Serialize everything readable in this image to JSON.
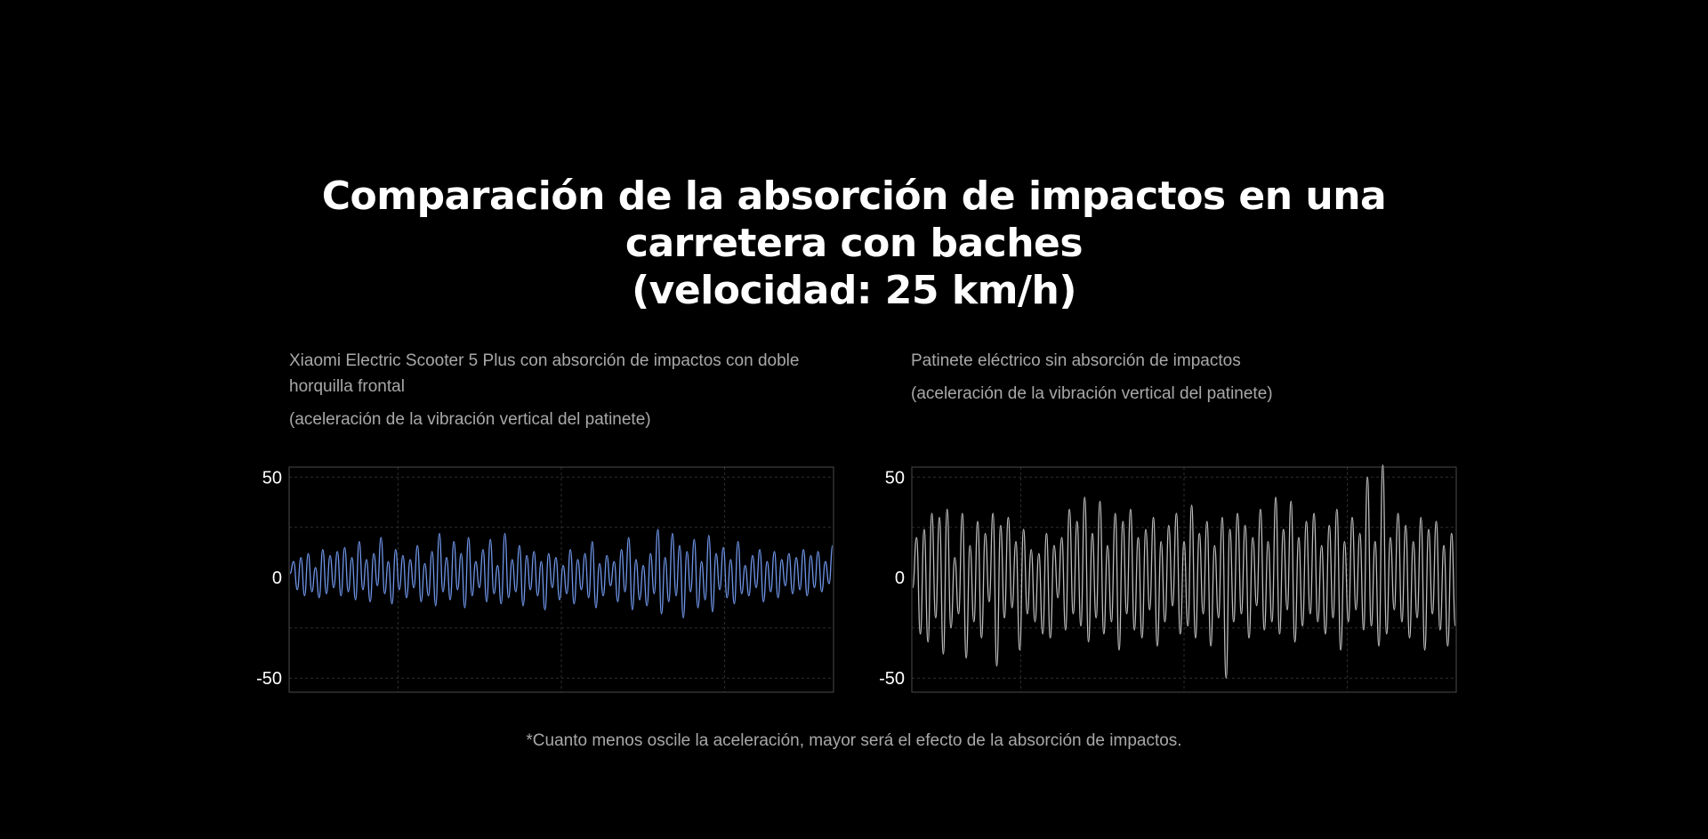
{
  "title": {
    "line1": "Comparación de la absorción de impactos en una",
    "line2": "carretera con baches",
    "line3": "(velocidad: 25 km/h)"
  },
  "footnote": "*Cuanto menos oscile la aceleración, mayor será el efecto de la absorción de impactos.",
  "colors": {
    "background": "#000000",
    "series_left": "#6f95e8",
    "series_right": "#bdbdbd",
    "frame": "#4a4a4a",
    "grid": "#2e2e2e"
  },
  "chart_data": [
    {
      "type": "line",
      "title": "Xiaomi Electric Scooter 5 Plus con absorción de impactos con doble horquilla frontal",
      "subtitle": "(aceleración de la vibración vertical del patinete)",
      "ylim": [
        -57,
        55
      ],
      "yticks": [
        50,
        0,
        -50
      ],
      "ytick_labels": [
        "50",
        "0",
        "-50"
      ],
      "grid": true,
      "series": [
        {
          "color": "#6f95e8",
          "y": [
            2,
            8,
            -6,
            10,
            -9,
            12,
            -7,
            5,
            -10,
            14,
            -8,
            11,
            -5,
            13,
            -9,
            15,
            -7,
            10,
            -11,
            18,
            -6,
            9,
            -12,
            12,
            -4,
            20,
            -8,
            8,
            -13,
            14,
            -6,
            11,
            -10,
            9,
            -5,
            16,
            -12,
            7,
            -9,
            13,
            -14,
            22,
            -7,
            10,
            -11,
            18,
            -6,
            12,
            -15,
            20,
            -9,
            8,
            -5,
            14,
            -12,
            19,
            -8,
            6,
            -13,
            22,
            -10,
            9,
            -7,
            16,
            -14,
            11,
            -6,
            13,
            -9,
            8,
            -16,
            12,
            -5,
            10,
            -11,
            6,
            -8,
            14,
            -13,
            9,
            -6,
            12,
            -10,
            18,
            -15,
            7,
            -9,
            11,
            -4,
            8,
            -12,
            14,
            -7,
            20,
            -16,
            9,
            -11,
            6,
            -14,
            12,
            -8,
            24,
            -18,
            10,
            -12,
            22,
            -9,
            16,
            -20,
            13,
            -7,
            19,
            -15,
            8,
            -11,
            21,
            -17,
            12,
            -6,
            15,
            -10,
            9,
            -13,
            18,
            -8,
            6,
            -9,
            11,
            -5,
            14,
            -12,
            8,
            -7,
            13,
            -10,
            9,
            -4,
            12,
            -8,
            10,
            -6,
            14,
            -9,
            11,
            -5,
            13,
            -7,
            8,
            -3,
            16
          ]
        }
      ]
    },
    {
      "type": "line",
      "title": "Patinete eléctrico sin absorción de impactos",
      "subtitle": "(aceleración de la vibración vertical del patinete)",
      "ylim": [
        -57,
        55
      ],
      "yticks": [
        50,
        0,
        -50
      ],
      "ytick_labels": [
        "50",
        "0",
        "-50"
      ],
      "grid": true,
      "series": [
        {
          "color": "#bdbdbd",
          "y": [
            -5,
            20,
            -28,
            24,
            -32,
            32,
            -20,
            30,
            -38,
            34,
            -25,
            10,
            -18,
            32,
            -40,
            16,
            -22,
            28,
            -30,
            22,
            -12,
            32,
            -44,
            26,
            -20,
            30,
            -15,
            18,
            -36,
            24,
            -18,
            14,
            -22,
            12,
            -28,
            22,
            -30,
            16,
            -10,
            20,
            -26,
            34,
            -18,
            28,
            -24,
            40,
            -32,
            22,
            -20,
            38,
            -28,
            16,
            -22,
            32,
            -36,
            28,
            -18,
            34,
            -26,
            20,
            -30,
            24,
            -16,
            30,
            -34,
            18,
            -22,
            26,
            -14,
            32,
            -28,
            18,
            -24,
            36,
            -30,
            22,
            -18,
            28,
            -34,
            16,
            -20,
            30,
            -50,
            24,
            -22,
            32,
            -18,
            26,
            -30,
            20,
            -14,
            34,
            -26,
            18,
            -22,
            40,
            -28,
            24,
            -16,
            38,
            -32,
            20,
            -24,
            28,
            -18,
            32,
            -22,
            16,
            -28,
            26,
            -20,
            34,
            -36,
            18,
            -22,
            30,
            -16,
            22,
            -26,
            50,
            -24,
            18,
            -34,
            56,
            -28,
            20,
            -16,
            32,
            -22,
            26,
            -30,
            18,
            -20,
            30,
            -36,
            24,
            -18,
            28,
            -26,
            16,
            -34,
            22,
            -24
          ]
        }
      ]
    }
  ]
}
